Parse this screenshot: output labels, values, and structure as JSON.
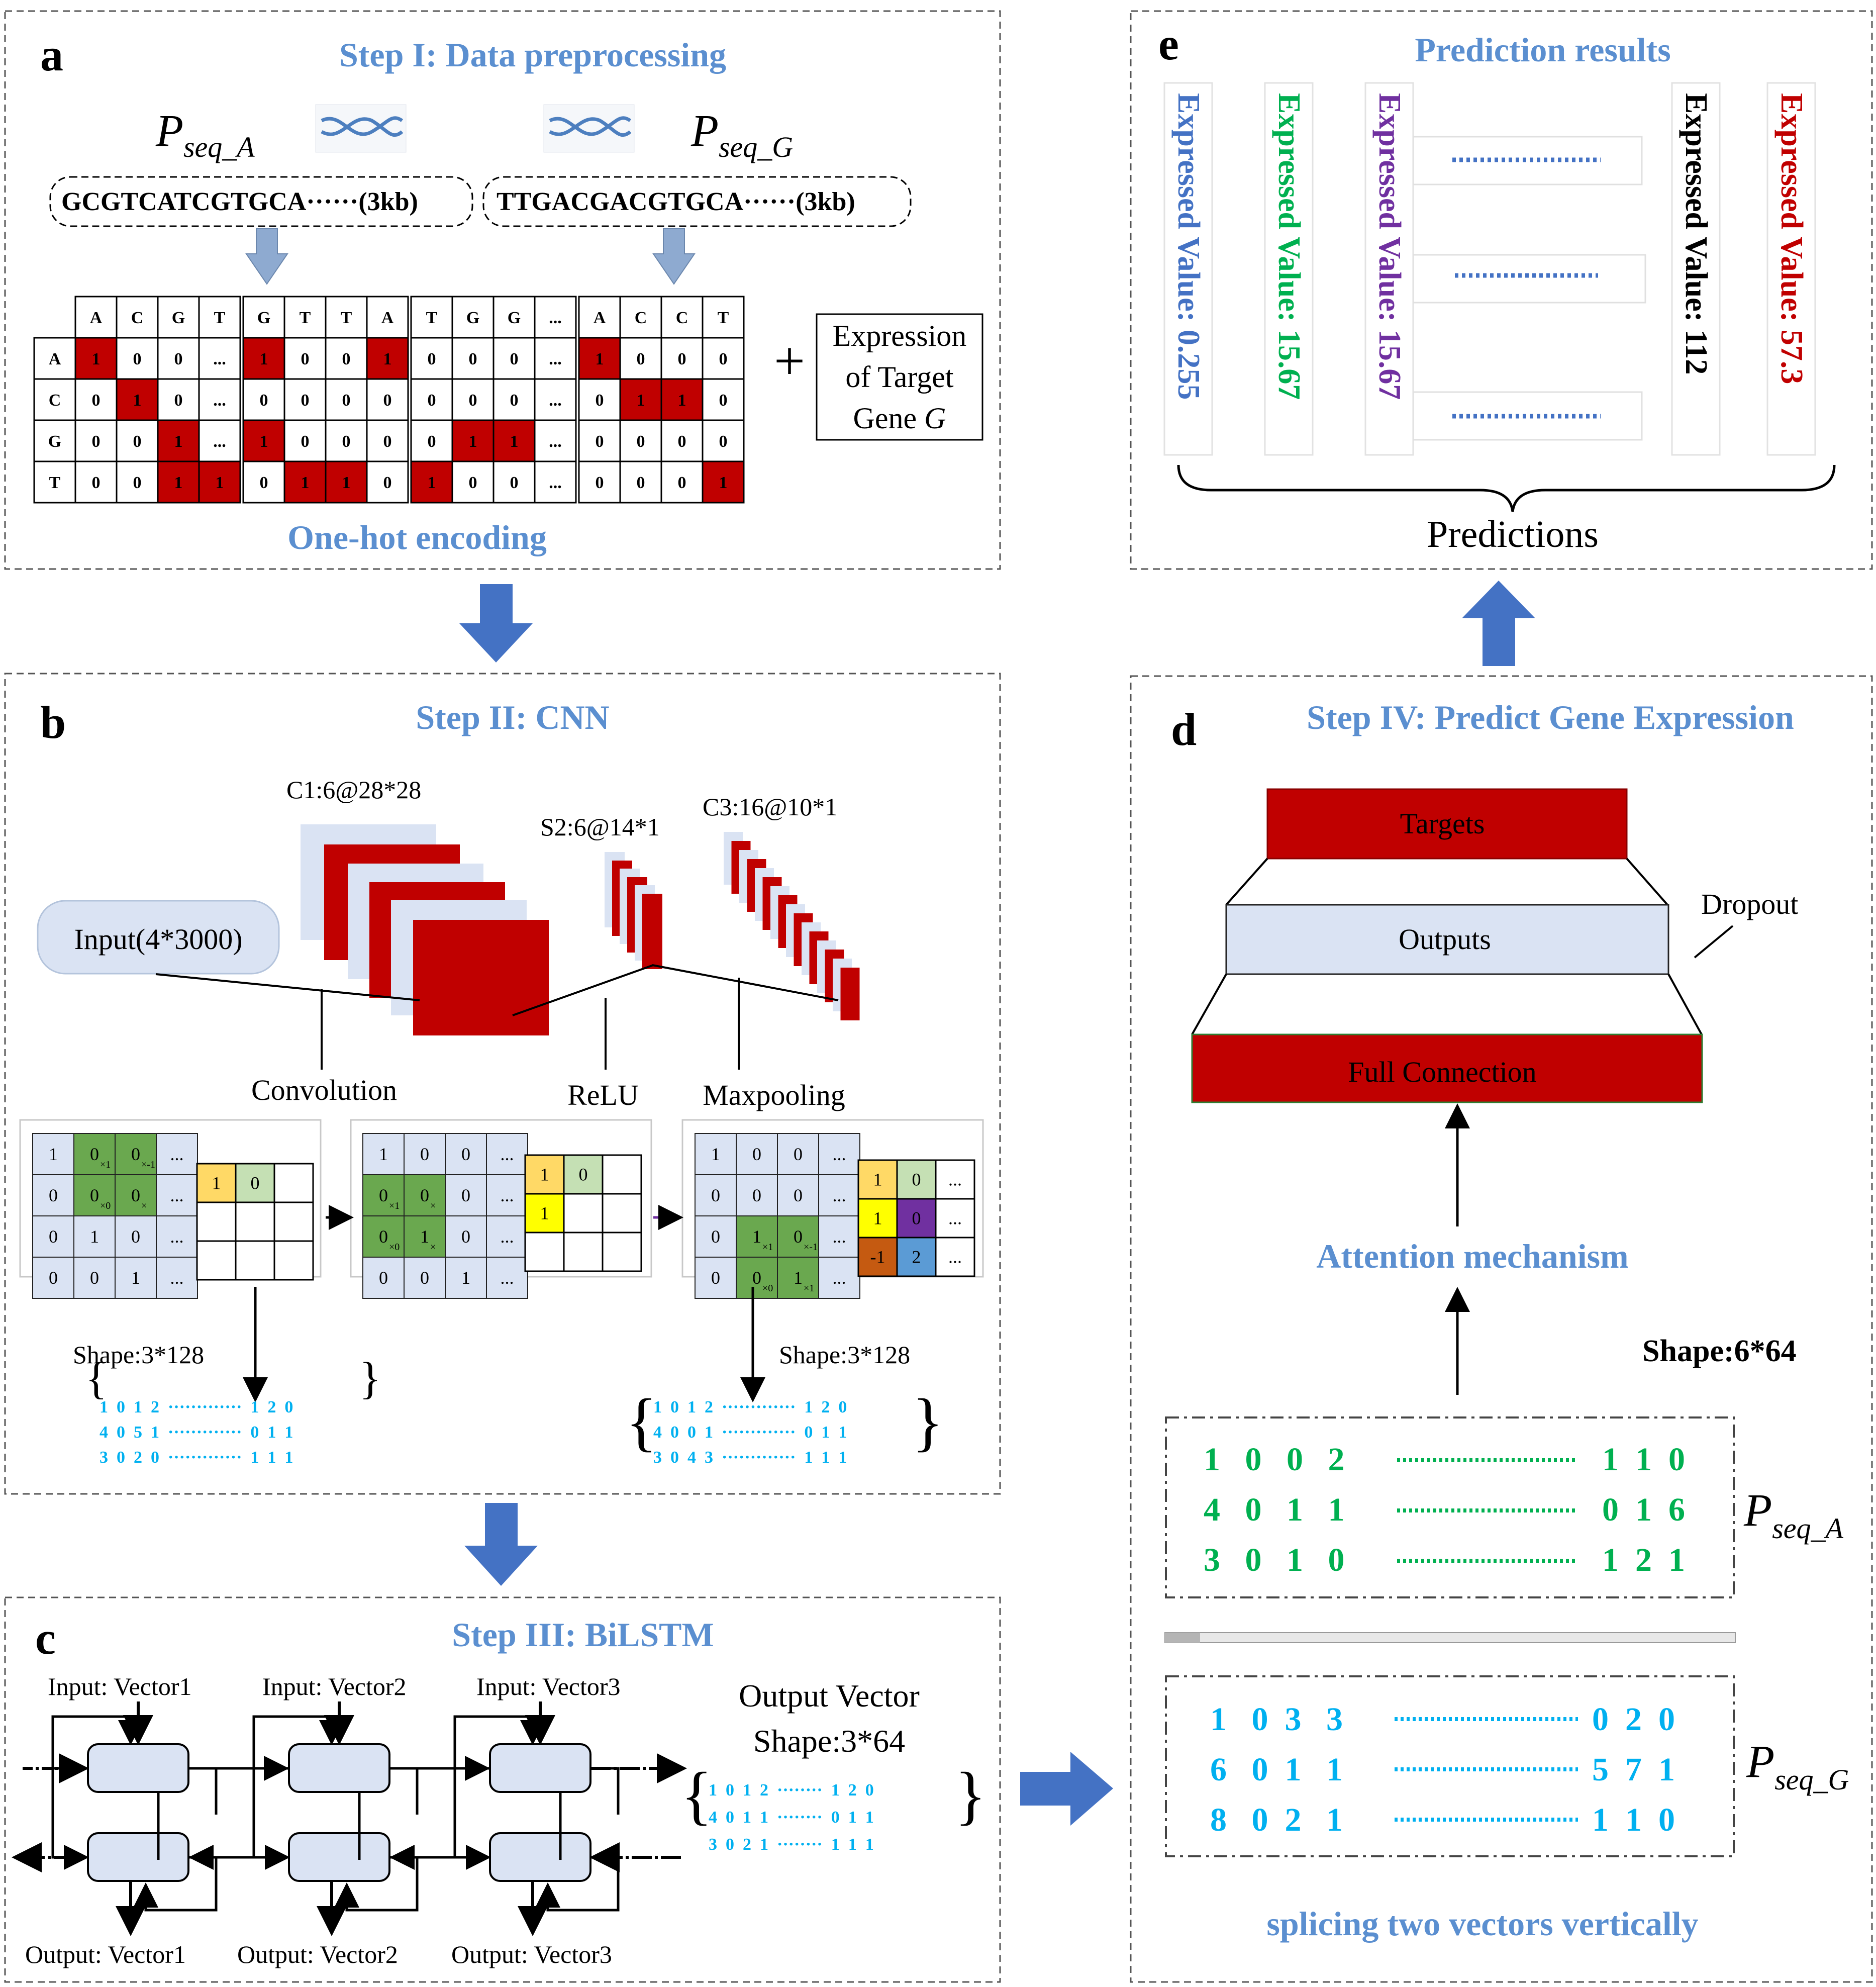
{
  "panel_a": {
    "label": "a",
    "title": "Step I: Data preprocessing",
    "seq_a_label": "P",
    "seq_a_sub": "seq_A",
    "seq_g_label": "P",
    "seq_g_sub": "seq_G",
    "seq_a_text": "GCGTCATCGTGCA······(3kb)",
    "seq_g_text": "TTGACGACGTGCA······(3kb)",
    "col_headers": [
      "A",
      "C",
      "G",
      "T",
      "G",
      "T",
      "T",
      "A",
      "T",
      "G",
      "G",
      "...",
      "A",
      "C",
      "C",
      "T"
    ],
    "row_headers": [
      "A",
      "C",
      "G",
      "T"
    ],
    "matrix": [
      [
        "1",
        "0",
        "0",
        "...",
        "1",
        "0",
        "0",
        "1",
        "0",
        "0",
        "0",
        "...",
        "1",
        "0",
        "0",
        "0"
      ],
      [
        "0",
        "1",
        "0",
        "...",
        "0",
        "0",
        "0",
        "0",
        "0",
        "0",
        "0",
        "...",
        "0",
        "1",
        "1",
        "0"
      ],
      [
        "0",
        "0",
        "1",
        "...",
        "1",
        "0",
        "0",
        "0",
        "0",
        "1",
        "1",
        "...",
        "0",
        "0",
        "0",
        "0"
      ],
      [
        "0",
        "0",
        "1",
        "1",
        "0",
        "1",
        "1",
        "0",
        "1",
        "0",
        "0",
        "...",
        "0",
        "0",
        "0",
        "1"
      ]
    ],
    "plus": "+",
    "expr_box": [
      "Expression",
      "of Target",
      "Gene "
    ],
    "expr_gene": "G",
    "encoding_caption": "One-hot encoding",
    "colors": {
      "hot": "#c00000",
      "arrow": "#8eaad0"
    }
  },
  "panel_b": {
    "label": "b",
    "title": "Step II: CNN",
    "input_label": "Input(4*3000)",
    "c1_label": "C1:6@28*28",
    "s2_label": "S2:6@14*1",
    "c3_label": "C3:16@10*1",
    "conv_label": "Convolution",
    "relu_label": "ReLU",
    "pool_label": "Maxpooling",
    "grid1": [
      [
        "1",
        "0",
        "0",
        "..."
      ],
      [
        "0",
        "0",
        "0",
        "..."
      ],
      [
        "0",
        "1",
        "0",
        "..."
      ],
      [
        "0",
        "0",
        "1",
        "..."
      ]
    ],
    "grid1_small": [
      "×1",
      "×-1",
      "×0",
      "×"
    ],
    "kernel1": [
      [
        "1",
        "0",
        ""
      ],
      [
        "",
        "",
        ""
      ],
      [
        "",
        "",
        ""
      ]
    ],
    "grid2": [
      [
        "1",
        "0",
        "0",
        "..."
      ],
      [
        "0",
        "0",
        "0",
        "..."
      ],
      [
        "0",
        "1",
        "0",
        "..."
      ],
      [
        "0",
        "0",
        "1",
        "..."
      ]
    ],
    "grid2_small": [
      "×1",
      "×",
      "×0",
      "×"
    ],
    "kernel2": [
      [
        "1",
        "0",
        ""
      ],
      [
        "1",
        "",
        ""
      ],
      [
        "",
        "",
        ""
      ]
    ],
    "grid3": [
      [
        "1",
        "0",
        "0",
        "..."
      ],
      [
        "0",
        "0",
        "0",
        "..."
      ],
      [
        "0",
        "1",
        "0",
        "..."
      ],
      [
        "0",
        "0",
        "1",
        "..."
      ]
    ],
    "grid3_small": [
      "×1",
      "×-1",
      "×0",
      "×1"
    ],
    "out3": [
      [
        "1",
        "0",
        "..."
      ],
      [
        "1",
        "0",
        "..."
      ],
      [
        "-1",
        "2",
        "..."
      ]
    ],
    "shape_left": "Shape:3*128",
    "shape_right": "Shape:3*128",
    "vec_left": [
      "1  0  1  2  ·············  1  2  0",
      "4  0  5  1  ·············  0  1  1",
      "3  0  2  0  ·············  1  1  1"
    ],
    "vec_right": [
      "1  0  1  2  ·············  1  2  0",
      "4  0  0  1  ·············  0  1  1",
      "3  0  4  3  ·············  1  1  1"
    ],
    "colors": {
      "map": "#c00000",
      "green": "#6aa84f",
      "yellow": "#ffd966",
      "lime": "#ffff00",
      "purple": "#7030a0",
      "orange": "#c55a11",
      "blue": "#5b9bd5",
      "light": "#dae3f3",
      "lightgreen": "#c5e0b4",
      "vec": "#00b0f0"
    }
  },
  "panel_c": {
    "label": "c",
    "title": "Step III: BiLSTM",
    "inputs": [
      "Input: Vector1",
      "Input: Vector2",
      "Input: Vector3"
    ],
    "outputs": [
      "Output: Vector1",
      "Output: Vector2",
      "Output: Vector3"
    ],
    "out_title_1": "Output Vector",
    "out_title_2": "Shape:3*64",
    "vec": [
      "1  0  1  2  ········  1  2  0",
      "4  0  1  1  ········  0  1  1",
      "3  0  2  1  ········  1  1  1"
    ]
  },
  "panel_d": {
    "label": "d",
    "title": "Step IV: Predict Gene Expression",
    "targets": "Targets",
    "outputs": "Outputs",
    "full": "Full Connection",
    "dropout": "Dropout",
    "attention": "Attention mechanism",
    "shape": "Shape:6*64",
    "vec_a": [
      "1   0   0   2",
      "4   0   1   1",
      "3   0   1   0"
    ],
    "vec_a_tail": [
      "1  1  0",
      "0  1  6",
      "1  2  1"
    ],
    "vec_g": [
      "1   0  3   3",
      "6   0  1   1",
      "8   0  2   1"
    ],
    "vec_g_tail": [
      "0  2  0",
      "5  7  1",
      "1  1  0"
    ],
    "pa_label": "P",
    "pa_sub": "seq_A",
    "pg_label": "P",
    "pg_sub": "seq_G",
    "splice": "splicing two vectors vertically",
    "colors": {
      "red": "#c00000",
      "light": "#dae3f3",
      "green": "#00b050",
      "cyan": "#00b0f0"
    }
  },
  "panel_e": {
    "label": "e",
    "title": "Prediction results",
    "values": [
      {
        "text": "Expressed Value: 0.255",
        "color": "#4472c4"
      },
      {
        "text": "Expressed Value: 15.67",
        "color": "#00b050"
      },
      {
        "text": "Expressed Value: 15.67",
        "color": "#7030a0"
      },
      {
        "text": "Expressed Value: 112",
        "color": "#000000"
      },
      {
        "text": "Expressed Value: 57.3",
        "color": "#c00000"
      }
    ],
    "dots": "··········",
    "predictions": "Predictions"
  }
}
